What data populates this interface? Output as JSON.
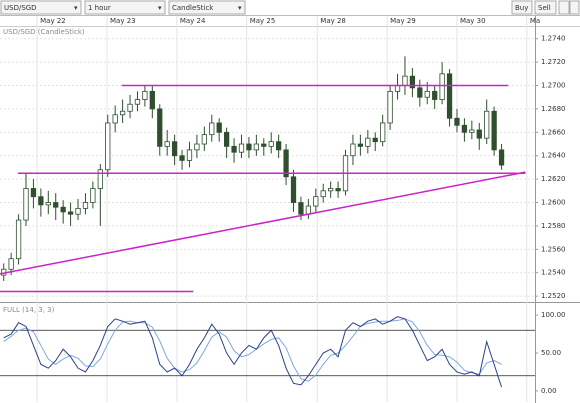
{
  "toolbar": {
    "symbol": "USD/SGD",
    "interval": "1 hour",
    "style": "CandleStick",
    "buy": "Buy",
    "sell": "Sell"
  },
  "chart_data": [
    {
      "type": "candlestick",
      "title": "USD/SGD (CandleStick)",
      "x": [
        0,
        1,
        2,
        3,
        4,
        5,
        6,
        7,
        8,
        9,
        10,
        11,
        12,
        13,
        14,
        15,
        16,
        17,
        18,
        19,
        20,
        21,
        22,
        23,
        24,
        25,
        26,
        27,
        28,
        29,
        30,
        31,
        32,
        33,
        34,
        35,
        36,
        37,
        38,
        39,
        40,
        41,
        42,
        43,
        44,
        45,
        46,
        47,
        48,
        49,
        50,
        51,
        52,
        53,
        54,
        55,
        56,
        57,
        58,
        59,
        60,
        61,
        62,
        63,
        64,
        65,
        66,
        67
      ],
      "open": [
        1.2538,
        1.2543,
        1.2552,
        1.2585,
        1.2612,
        1.2605,
        1.2598,
        1.26,
        1.2596,
        1.2592,
        1.259,
        1.2595,
        1.26,
        1.2612,
        1.2628,
        1.2668,
        1.2675,
        1.2678,
        1.2684,
        1.2688,
        1.2695,
        1.268,
        1.2648,
        1.2652,
        1.264,
        1.2636,
        1.2645,
        1.265,
        1.2658,
        1.2668,
        1.266,
        1.2648,
        1.2643,
        1.265,
        1.2645,
        1.265,
        1.2648,
        1.2652,
        1.2645,
        1.2622,
        1.26,
        1.259,
        1.2597,
        1.2605,
        1.261,
        1.2612,
        1.261,
        1.264,
        1.265,
        1.2648,
        1.2655,
        1.2652,
        1.2668,
        1.2695,
        1.27,
        1.2708,
        1.2698,
        1.269,
        1.2695,
        1.2688,
        1.271,
        1.2672,
        1.2666,
        1.266,
        1.2662,
        1.2655,
        1.2678,
        1.2645
      ],
      "high": [
        1.2548,
        1.2557,
        1.259,
        1.2625,
        1.262,
        1.2612,
        1.261,
        1.2608,
        1.2602,
        1.26,
        1.2603,
        1.2608,
        1.2618,
        1.2633,
        1.2675,
        1.2683,
        1.2688,
        1.2692,
        1.2695,
        1.27,
        1.27,
        1.2684,
        1.2662,
        1.2658,
        1.2645,
        1.2652,
        1.2658,
        1.2665,
        1.2675,
        1.2672,
        1.2664,
        1.2655,
        1.2658,
        1.2656,
        1.2658,
        1.2655,
        1.266,
        1.2658,
        1.265,
        1.2628,
        1.2605,
        1.2603,
        1.2612,
        1.2616,
        1.2618,
        1.2618,
        1.2645,
        1.2658,
        1.2658,
        1.2662,
        1.266,
        1.2675,
        1.27,
        1.271,
        1.2725,
        1.2715,
        1.2705,
        1.2703,
        1.27,
        1.272,
        1.2714,
        1.268,
        1.2672,
        1.267,
        1.2668,
        1.2688,
        1.2682,
        1.265
      ],
      "low": [
        1.2533,
        1.2538,
        1.2547,
        1.258,
        1.2595,
        1.2588,
        1.259,
        1.2585,
        1.2582,
        1.258,
        1.2585,
        1.259,
        1.2595,
        1.258,
        1.2622,
        1.266,
        1.2668,
        1.2672,
        1.2678,
        1.2682,
        1.2672,
        1.264,
        1.264,
        1.2632,
        1.2628,
        1.263,
        1.2638,
        1.2644,
        1.2652,
        1.2652,
        1.2638,
        1.2634,
        1.2638,
        1.2638,
        1.264,
        1.264,
        1.2642,
        1.2638,
        1.2615,
        1.2592,
        1.2585,
        1.2586,
        1.2592,
        1.26,
        1.2604,
        1.2604,
        1.2606,
        1.2632,
        1.264,
        1.2642,
        1.2644,
        1.2648,
        1.2662,
        1.2688,
        1.2692,
        1.269,
        1.2682,
        1.2684,
        1.268,
        1.2684,
        1.2665,
        1.266,
        1.2652,
        1.2654,
        1.2645,
        1.265,
        1.264,
        1.2628
      ],
      "close": [
        1.2543,
        1.2552,
        1.2585,
        1.2612,
        1.2605,
        1.2598,
        1.26,
        1.2596,
        1.2592,
        1.259,
        1.2595,
        1.26,
        1.2612,
        1.2628,
        1.2668,
        1.2675,
        1.2678,
        1.2684,
        1.2688,
        1.2695,
        1.268,
        1.2648,
        1.2652,
        1.264,
        1.2636,
        1.2645,
        1.265,
        1.2658,
        1.2668,
        1.266,
        1.2648,
        1.2643,
        1.265,
        1.2645,
        1.265,
        1.2648,
        1.2652,
        1.2645,
        1.2622,
        1.26,
        1.259,
        1.2597,
        1.2605,
        1.261,
        1.2612,
        1.261,
        1.264,
        1.265,
        1.2648,
        1.2655,
        1.2652,
        1.2668,
        1.2695,
        1.27,
        1.2708,
        1.2698,
        1.269,
        1.2695,
        1.2688,
        1.271,
        1.2672,
        1.2666,
        1.266,
        1.2662,
        1.2655,
        1.2678,
        1.2645,
        1.2632
      ],
      "up_color": "#ffffff",
      "down_color": "#2f4f2f",
      "edge_color": "#2f4f2f",
      "xlim": [
        -0.5,
        71.5
      ],
      "xticks": [
        {
          "value": 4.5,
          "label": "May 22"
        },
        {
          "value": 13.9,
          "label": "May 23"
        },
        {
          "value": 23.3,
          "label": "May 24"
        },
        {
          "value": 32.7,
          "label": "May 25"
        },
        {
          "value": 42.2,
          "label": "May 28"
        },
        {
          "value": 51.6,
          "label": "May 29"
        },
        {
          "value": 61.0,
          "label": "May 30"
        },
        {
          "value": 70.4,
          "label": "Ma"
        }
      ],
      "ylim": [
        1.2515,
        1.275
      ],
      "yticks": [
        {
          "value": 1.252,
          "label": "1.2520"
        },
        {
          "value": 1.254,
          "label": "1.2540"
        },
        {
          "value": 1.256,
          "label": "1.2560"
        },
        {
          "value": 1.258,
          "label": "1.2580"
        },
        {
          "value": 1.26,
          "label": "1.2600"
        },
        {
          "value": 1.262,
          "label": "1.2620"
        },
        {
          "value": 1.264,
          "label": "1.2640"
        },
        {
          "value": 1.266,
          "label": "1.2660"
        },
        {
          "value": 1.268,
          "label": "1.2680"
        },
        {
          "value": 1.27,
          "label": "1.2700"
        },
        {
          "value": 1.272,
          "label": "1.2720"
        },
        {
          "value": 1.274,
          "label": "1.2740"
        }
      ],
      "grid": true,
      "lines": [
        {
          "color": "#cc22cc",
          "x": [
            15.9,
            67.9
          ],
          "y": [
            1.27,
            1.27
          ]
        },
        {
          "color": "#cc22cc",
          "x": [
            1.9,
            70.2
          ],
          "y": [
            1.2625,
            1.2625
          ]
        },
        {
          "color": "#cc22cc",
          "x": [
            -0.5,
            25.5
          ],
          "y": [
            1.2524,
            1.2524
          ]
        },
        {
          "color": "#cc22cc",
          "x": [
            -0.5,
            70.2
          ],
          "y": [
            1.2539,
            1.2626
          ]
        }
      ]
    },
    {
      "type": "line",
      "title": "FULL (14, 3, 3)",
      "x": [
        0,
        1,
        2,
        3,
        4,
        5,
        6,
        7,
        8,
        9,
        10,
        11,
        12,
        13,
        14,
        15,
        16,
        17,
        18,
        19,
        20,
        21,
        22,
        23,
        24,
        25,
        26,
        27,
        28,
        29,
        30,
        31,
        32,
        33,
        34,
        35,
        36,
        37,
        38,
        39,
        40,
        41,
        42,
        43,
        44,
        45,
        46,
        47,
        48,
        49,
        50,
        51,
        52,
        53,
        54,
        55,
        56,
        57,
        58,
        59,
        60,
        61,
        62,
        63,
        64,
        65,
        66,
        67
      ],
      "series": [
        {
          "color": "#2b3f8f",
          "values": [
            70,
            75,
            90,
            85,
            60,
            35,
            30,
            40,
            55,
            45,
            30,
            25,
            40,
            60,
            85,
            95,
            92,
            88,
            90,
            92,
            70,
            35,
            25,
            30,
            20,
            35,
            55,
            70,
            88,
            75,
            50,
            35,
            50,
            60,
            55,
            70,
            80,
            60,
            30,
            10,
            8,
            20,
            35,
            50,
            55,
            45,
            80,
            90,
            85,
            92,
            95,
            88,
            92,
            98,
            95,
            80,
            60,
            40,
            45,
            55,
            35,
            25,
            22,
            25,
            20,
            65,
            35,
            5
          ]
        },
        {
          "color": "#7fa7e0",
          "values": [
            65,
            72,
            80,
            83,
            78,
            60,
            42,
            35,
            42,
            47,
            43,
            33,
            32,
            42,
            62,
            80,
            91,
            92,
            90,
            90,
            84,
            66,
            43,
            30,
            25,
            28,
            37,
            53,
            71,
            78,
            71,
            53,
            45,
            48,
            55,
            62,
            68,
            70,
            57,
            33,
            16,
            13,
            21,
            35,
            47,
            50,
            60,
            72,
            85,
            89,
            91,
            92,
            92,
            93,
            95,
            91,
            78,
            60,
            48,
            47,
            45,
            38,
            27,
            24,
            22,
            37,
            40,
            35
          ]
        }
      ],
      "levels": [
        80,
        20
      ],
      "xlim": [
        -0.5,
        71.5
      ],
      "ylim": [
        -12,
        116
      ],
      "yticks": [
        {
          "value": 100,
          "label": "100.00"
        },
        {
          "value": 50,
          "label": "50.00"
        },
        {
          "value": 0,
          "label": "0.00"
        }
      ]
    }
  ]
}
